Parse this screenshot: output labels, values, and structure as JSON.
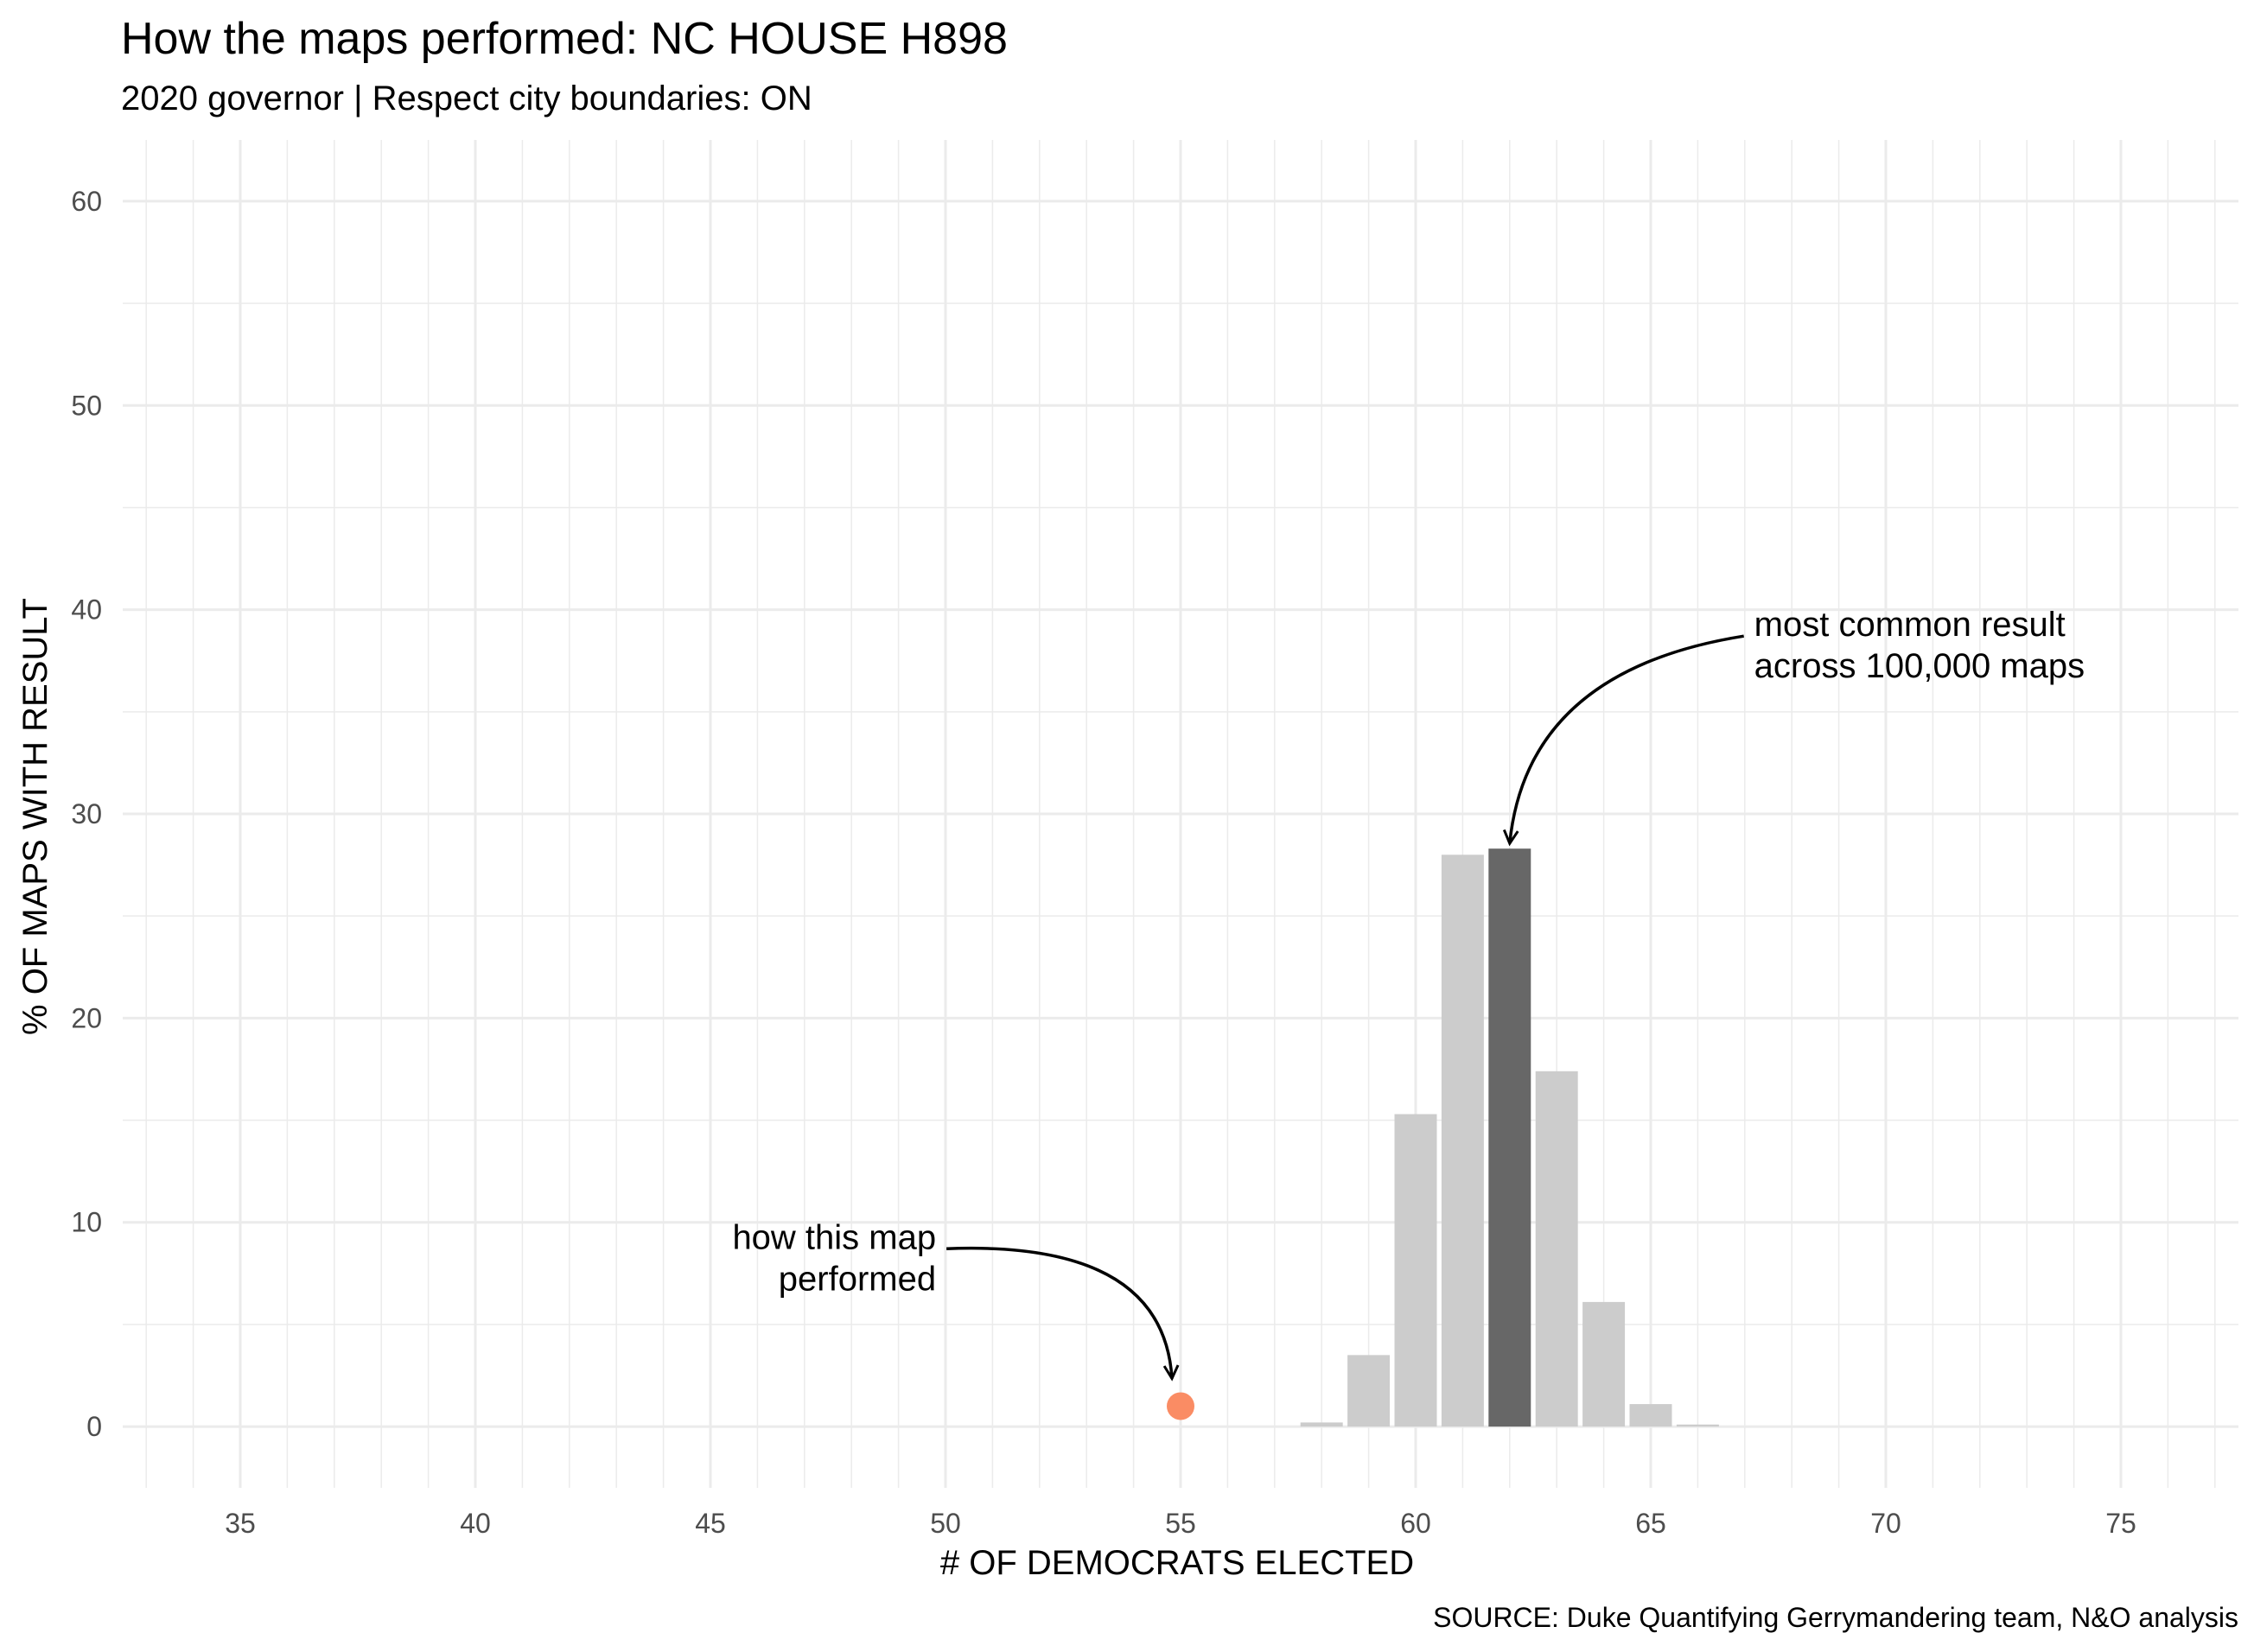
{
  "chart_data": {
    "type": "bar",
    "title": "How the maps performed: NC HOUSE H898",
    "subtitle": "2020 governor | Respect city boundaries: ON",
    "xlabel": "# OF DEMOCRATS ELECTED",
    "ylabel": "% OF MAPS WITH RESULT",
    "caption": "SOURCE: Duke Quantifying Gerrymandering team, N&O analysis",
    "xlim": [
      32.5,
      77.5
    ],
    "ylim": [
      -3,
      63
    ],
    "x_ticks": [
      35,
      40,
      45,
      50,
      55,
      60,
      65,
      70,
      75
    ],
    "y_ticks": [
      0,
      10,
      20,
      30,
      40,
      50,
      60
    ],
    "grid": true,
    "bars": {
      "x": [
        58,
        59,
        60,
        61,
        62,
        63,
        64,
        65,
        66
      ],
      "values": [
        0.2,
        3.5,
        15.3,
        28.0,
        28.3,
        17.4,
        6.1,
        1.1,
        0.1
      ],
      "highlight_x": 62
    },
    "this_map": {
      "x": 55,
      "y": 1.0
    },
    "colors": {
      "bar": "#cccccc",
      "highlight": "#676767",
      "point": "#fa8c64",
      "grid": "#ebebeb"
    },
    "annotations": [
      {
        "lines": [
          "most common result",
          "across 100,000 maps"
        ],
        "x": 67.2,
        "y": 39.3,
        "anchor": "start"
      },
      {
        "lines": [
          "how this map",
          "performed"
        ],
        "x": 49.8,
        "y": 9.3,
        "anchor": "end"
      }
    ]
  }
}
